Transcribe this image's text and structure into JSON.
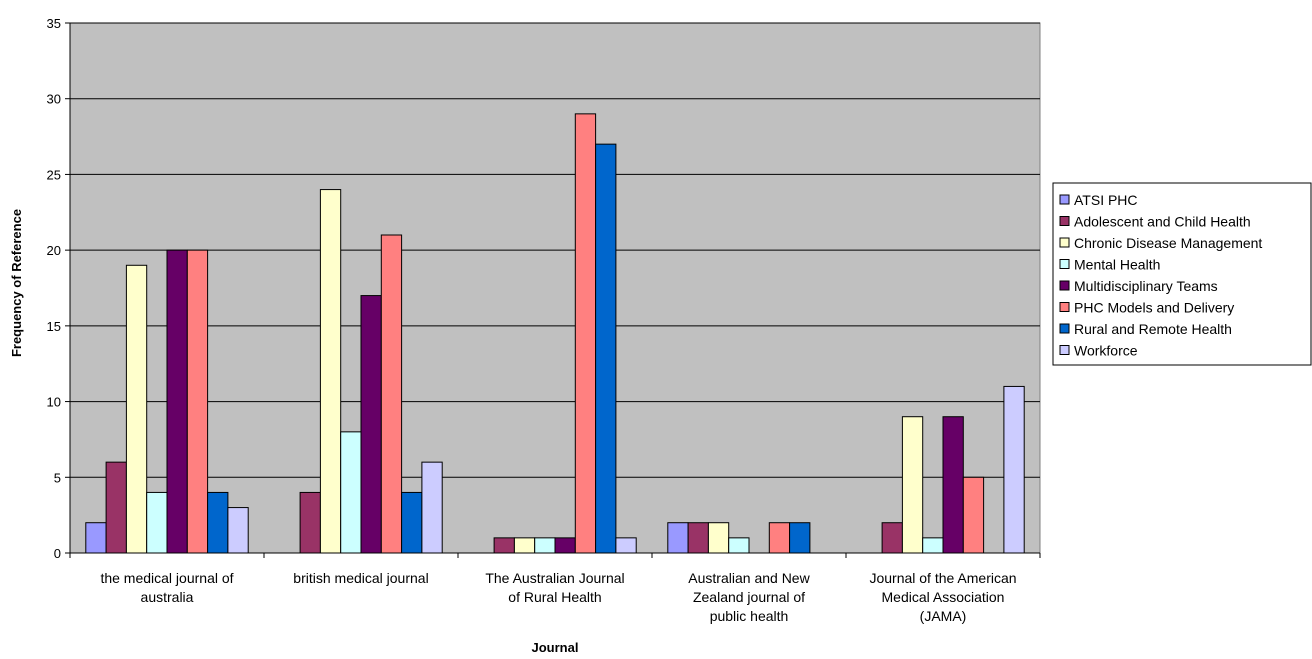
{
  "chart_data": {
    "type": "bar",
    "title": "",
    "xlabel": "Journal",
    "ylabel": "Frequency of Reference",
    "ylim": [
      0,
      35
    ],
    "yticks": [
      "0",
      "5",
      "10",
      "15",
      "20",
      "25",
      "30",
      "35"
    ],
    "categories": [
      [
        "the medical journal of",
        "australia"
      ],
      [
        "british medical journal"
      ],
      [
        "The Australian Journal",
        "of Rural Health"
      ],
      [
        "Australian and New",
        "Zealand journal of",
        "public health"
      ],
      [
        "Journal of the American",
        "Medical Association",
        "(JAMA)"
      ]
    ],
    "series": [
      {
        "name": "ATSI PHC",
        "color": "#9999FF",
        "values": [
          2,
          null,
          null,
          2,
          null
        ]
      },
      {
        "name": "Adolescent and Child Health",
        "color": "#993366",
        "values": [
          6,
          4,
          1,
          2,
          2
        ]
      },
      {
        "name": "Chronic Disease Management",
        "color": "#FFFFCC",
        "values": [
          19,
          24,
          1,
          2,
          9
        ]
      },
      {
        "name": "Mental Health",
        "color": "#CCFFFF",
        "values": [
          4,
          8,
          1,
          1,
          1
        ]
      },
      {
        "name": "Multidisciplinary Teams",
        "color": "#660066",
        "values": [
          20,
          17,
          1,
          null,
          9
        ]
      },
      {
        "name": "PHC Models and Delivery",
        "color": "#FF8080",
        "values": [
          20,
          21,
          29,
          2,
          5
        ]
      },
      {
        "name": "Rural and Remote Health",
        "color": "#0066CC",
        "values": [
          4,
          4,
          27,
          2,
          null
        ]
      },
      {
        "name": "Workforce",
        "color": "#CCCCFF",
        "values": [
          3,
          6,
          1,
          null,
          11
        ]
      }
    ],
    "plot_background": "#C0C0C0",
    "grid": true,
    "legend_position": "right"
  }
}
